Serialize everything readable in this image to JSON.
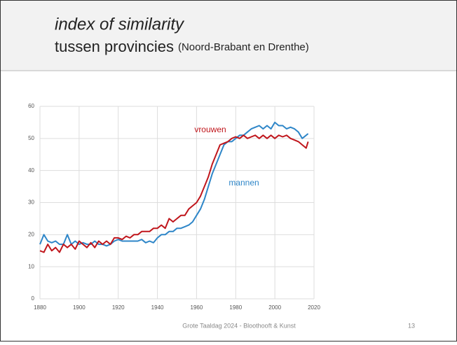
{
  "slide": {
    "title": "index of similarity",
    "subtitle": "tussen provincies",
    "subtitle_note": "(Noord-Brabant en Drenthe)",
    "footer": "Grote Taaldag 2024 - Bloothooft & Kunst",
    "page": "13"
  },
  "chart_data": {
    "type": "line",
    "x": [
      1880,
      1882,
      1884,
      1886,
      1888,
      1890,
      1892,
      1894,
      1896,
      1898,
      1900,
      1902,
      1904,
      1906,
      1908,
      1910,
      1912,
      1914,
      1916,
      1918,
      1920,
      1922,
      1924,
      1926,
      1928,
      1930,
      1932,
      1934,
      1936,
      1938,
      1940,
      1942,
      1944,
      1946,
      1948,
      1950,
      1952,
      1954,
      1956,
      1958,
      1960,
      1962,
      1964,
      1966,
      1968,
      1970,
      1972,
      1974,
      1976,
      1978,
      1980,
      1982,
      1984,
      1986,
      1988,
      1990,
      1992,
      1994,
      1996,
      1998,
      2000,
      2002,
      2004,
      2006,
      2008,
      2010,
      2012,
      2014,
      2016,
      2017
    ],
    "series": [
      {
        "name": "mannen",
        "color": "#2e86c8",
        "values": [
          17,
          20,
          18,
          17.5,
          18,
          17,
          17,
          20,
          17,
          18,
          17,
          17.5,
          17,
          17,
          18,
          17,
          17,
          16.5,
          17,
          18,
          18.5,
          18,
          18,
          18,
          18,
          18,
          18.5,
          17.5,
          18,
          17.5,
          19,
          20,
          20,
          21,
          21,
          22,
          22,
          22.5,
          23,
          24,
          26,
          28,
          31,
          35,
          39,
          42,
          45,
          48,
          49,
          49,
          50,
          51,
          51,
          52,
          53,
          53.5,
          54,
          53,
          54,
          53,
          55,
          54,
          54,
          53,
          53.5,
          53,
          52,
          50,
          51,
          51.5
        ]
      },
      {
        "name": "vrouwen",
        "color": "#c0161c",
        "values": [
          15,
          14.5,
          17,
          15,
          16,
          14.5,
          17,
          16,
          17,
          15.5,
          18,
          17,
          16,
          17.5,
          16,
          18,
          17,
          18,
          17,
          19,
          19,
          18.5,
          19.5,
          19,
          20,
          20,
          21,
          21,
          21,
          22,
          22,
          23,
          22,
          25,
          24,
          25,
          26,
          26,
          28,
          29,
          30,
          32,
          35,
          38,
          42,
          45,
          48,
          48.5,
          49,
          50,
          50.5,
          50,
          51,
          50,
          50.5,
          51,
          50,
          51,
          50,
          51,
          50,
          51,
          50.5,
          51,
          50,
          49.5,
          49,
          48,
          47,
          49
        ]
      }
    ],
    "xlim": [
      1880,
      2020
    ],
    "xticks": [
      1880,
      1900,
      1920,
      1940,
      1960,
      1980,
      2000,
      2020
    ],
    "ylim": [
      0,
      60
    ],
    "yticks": [
      0,
      10,
      20,
      30,
      40,
      50,
      60
    ],
    "grid": true
  }
}
